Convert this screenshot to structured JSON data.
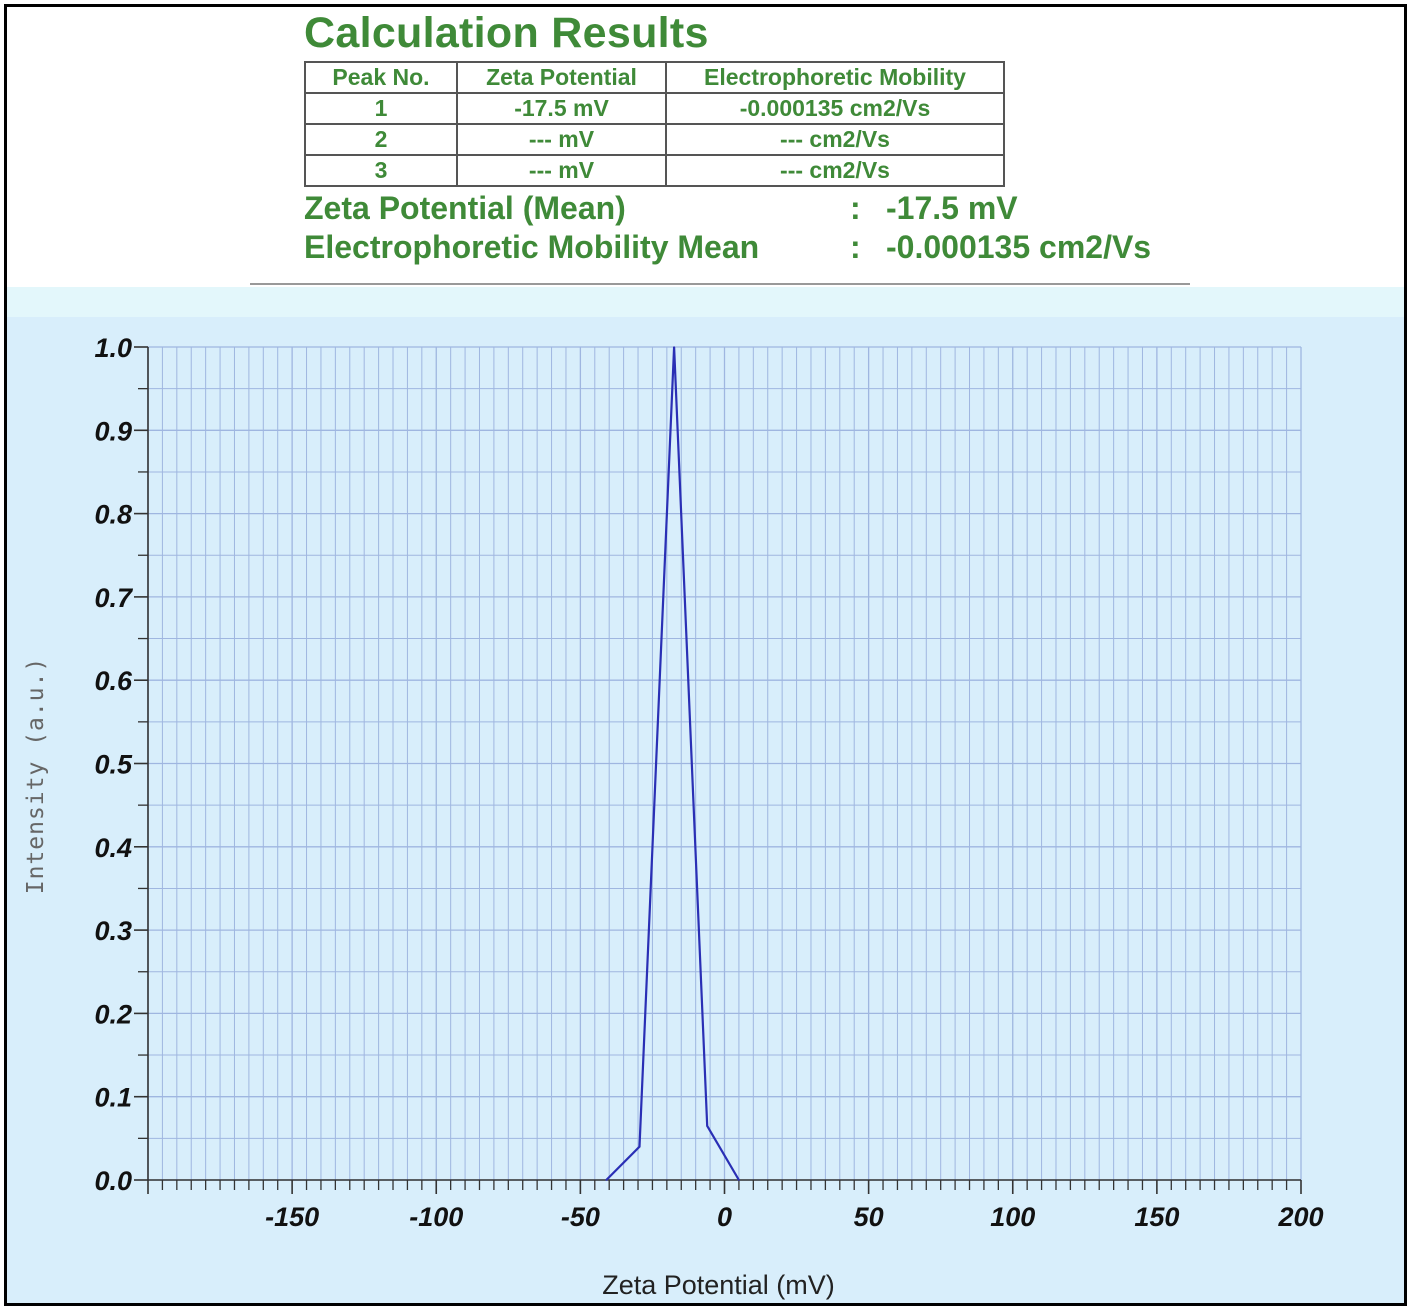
{
  "results": {
    "title": "Calculation Results",
    "table": {
      "headers": [
        "Peak No.",
        "Zeta Potential",
        "Electrophoretic Mobility"
      ],
      "rows": [
        [
          "1",
          "-17.5 mV",
          "-0.000135 cm2/Vs"
        ],
        [
          "2",
          "--- mV",
          "--- cm2/Vs"
        ],
        [
          "3",
          "--- mV",
          "--- cm2/Vs"
        ]
      ]
    },
    "summary": [
      {
        "label": "Zeta Potential (Mean)",
        "sep": ":",
        "value": "-17.5 mV"
      },
      {
        "label": "Electrophoretic Mobility Mean",
        "sep": ":",
        "value": "-0.000135 cm2/Vs"
      }
    ]
  },
  "colors": {
    "text_green": "#3f8a38",
    "plot_bg": "#d8eefb",
    "grid": "#9fb6e0",
    "line": "#2a2fb5",
    "axis": "#333333"
  },
  "chart_data": {
    "type": "line",
    "xlabel": "Zeta Potential (mV)",
    "ylabel": "Intensity (a.u.)",
    "xlim": [
      -200,
      200
    ],
    "ylim": [
      0,
      1.0
    ],
    "x_ticks": [
      -150,
      -100,
      -50,
      0,
      50,
      100,
      150,
      200
    ],
    "x_tick_labels": [
      "-150",
      "-100",
      "-50",
      "0",
      "50",
      "100",
      "150",
      "200"
    ],
    "y_ticks": [
      0,
      0.1,
      0.2,
      0.3,
      0.4,
      0.5,
      0.6,
      0.7,
      0.8,
      0.9,
      1.0
    ],
    "y_tick_labels": [
      "0.0",
      "0.1",
      "0.2",
      "0.3",
      "0.4",
      "0.5",
      "0.6",
      "0.7",
      "0.8",
      "0.9",
      "1.0"
    ],
    "grid": true,
    "series": [
      {
        "x": [
          -41,
          -29.5,
          -17.5,
          -6,
          5
        ],
        "y": [
          0.0,
          0.04,
          1.0,
          0.065,
          0.0
        ]
      }
    ]
  }
}
